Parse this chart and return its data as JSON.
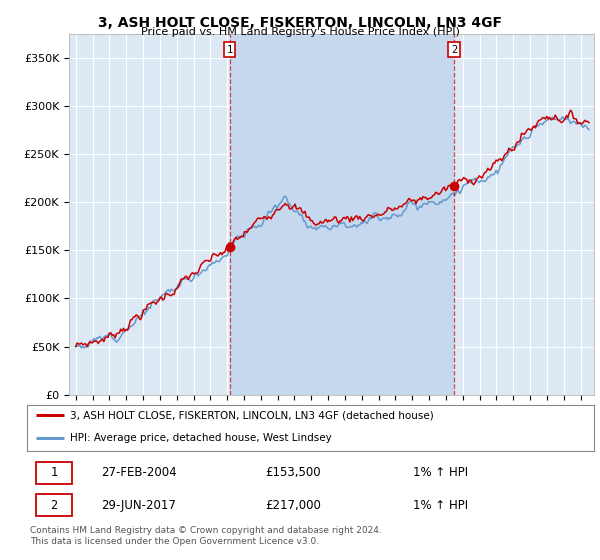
{
  "title": "3, ASH HOLT CLOSE, FISKERTON, LINCOLN, LN3 4GF",
  "subtitle": "Price paid vs. HM Land Registry's House Price Index (HPI)",
  "ylabel_ticks": [
    "£0",
    "£50K",
    "£100K",
    "£150K",
    "£200K",
    "£250K",
    "£300K",
    "£350K"
  ],
  "ytick_values": [
    0,
    50000,
    100000,
    150000,
    200000,
    250000,
    300000,
    350000
  ],
  "ylim": [
    0,
    375000
  ],
  "xlim_start": 1994.6,
  "xlim_end": 2025.8,
  "purchase1": {
    "date_num": 2004.15,
    "price": 153500,
    "label": "1"
  },
  "purchase2": {
    "date_num": 2017.49,
    "price": 217000,
    "label": "2"
  },
  "legend_line1": "3, ASH HOLT CLOSE, FISKERTON, LINCOLN, LN3 4GF (detached house)",
  "legend_line2": "HPI: Average price, detached house, West Lindsey",
  "table_row1": [
    "1",
    "27-FEB-2004",
    "£153,500",
    "1% ↑ HPI"
  ],
  "table_row2": [
    "2",
    "29-JUN-2017",
    "£217,000",
    "1% ↑ HPI"
  ],
  "footnote": "Contains HM Land Registry data © Crown copyright and database right 2024.\nThis data is licensed under the Open Government Licence v3.0.",
  "price_line_color": "#cc0000",
  "hpi_line_color": "#6699cc",
  "background_color": "#ffffff",
  "plot_bg_color": "#dce9f5",
  "shade_color": "#c5d8ee",
  "grid_color": "#ffffff",
  "dashed_line_color": "#cc0000"
}
